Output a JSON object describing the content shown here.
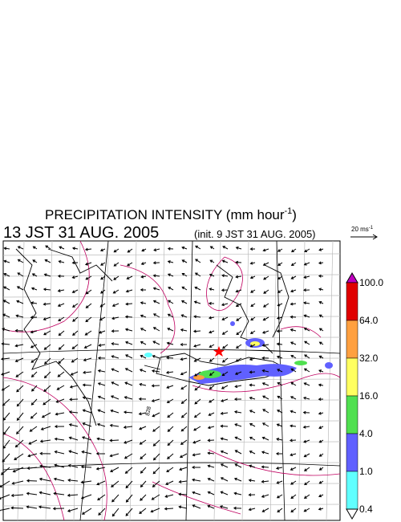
{
  "header": {
    "title": "PRECIPITATION INTENSITY (mm hour",
    "title_superscript": "-1",
    "title_close": ")",
    "valid_time": "13 JST 31 AUG. 2005",
    "init_time": "(init. 9 JST 31 AUG. 2005)"
  },
  "vector_scale": {
    "label": "20 ms",
    "superscript": "-1"
  },
  "map": {
    "contour_label": "828",
    "marker_color": "#ff0000"
  },
  "legend": {
    "levels": [
      {
        "label": "100.0",
        "color": "#c000c0"
      },
      {
        "label": "64.0",
        "color": "#e00000"
      },
      {
        "label": "32.0",
        "color": "#ffa040"
      },
      {
        "label": "16.0",
        "color": "#ffff60"
      },
      {
        "label": "4.0",
        "color": "#50e050"
      },
      {
        "label": "1.0",
        "color": "#6060ff"
      },
      {
        "label": "0.4",
        "color": "#60ffff"
      }
    ]
  }
}
